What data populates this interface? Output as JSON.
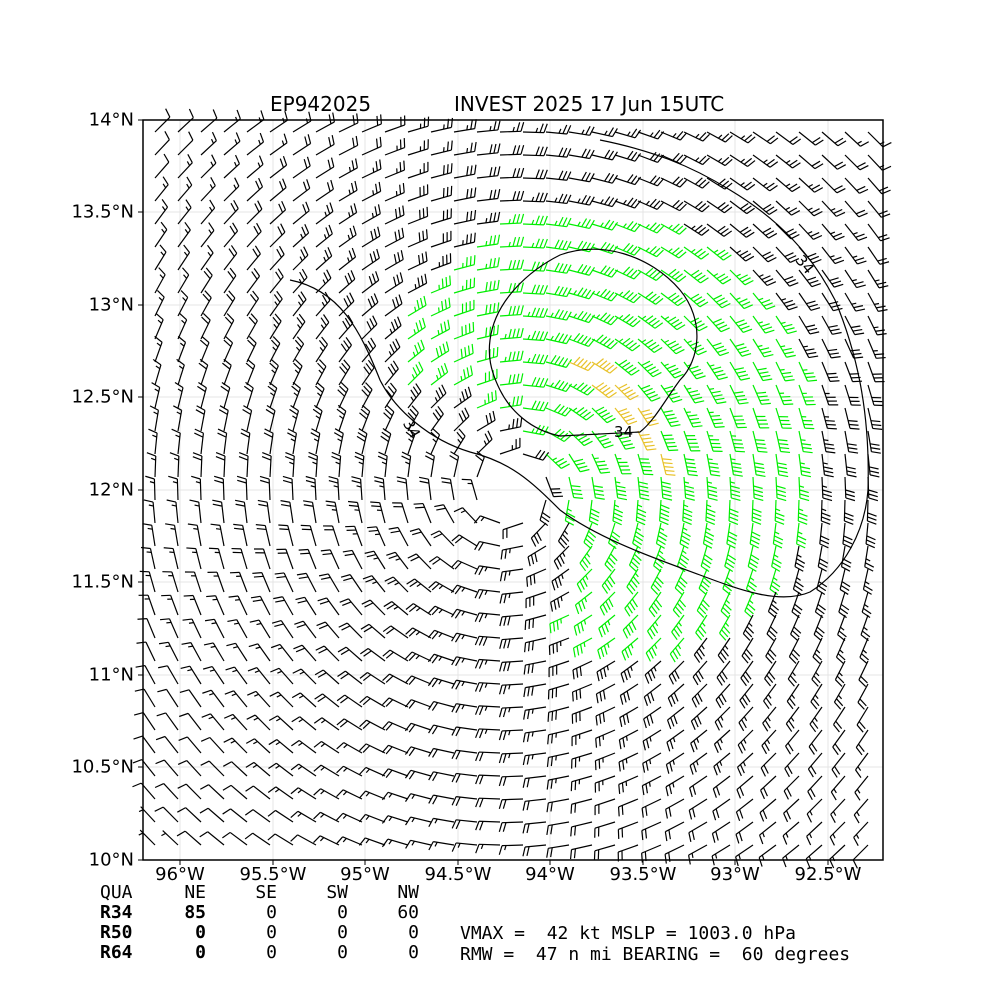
{
  "header": {
    "storm_id": "EP942025",
    "storm_title": "INVEST 2025 17 Jun 15UTC"
  },
  "map": {
    "lat_labels": [
      "14°N",
      "13.5°N",
      "13°N",
      "12.5°N",
      "12°N",
      "11.5°N",
      "11°N",
      "10.5°N",
      "10°N"
    ],
    "lon_labels": [
      "96°W",
      "95.5°W",
      "95°W",
      "94.5°W",
      "94°W",
      "93.5°W",
      "93°W",
      "92.5°W"
    ],
    "contour_labels": [
      "34",
      "34",
      "34"
    ],
    "barb_colors": {
      "below_34kt": "#000000",
      "34_to_50kt": "#00ee00",
      "50_to_64kt": "#e8c22a"
    },
    "center": {
      "lat": 12.0,
      "lon": 94.2
    }
  },
  "radii_table": {
    "headers": [
      "QUA",
      "NE",
      "SE",
      "SW",
      "NW"
    ],
    "rows": [
      {
        "label": "R34",
        "values": [
          "85",
          "0",
          "0",
          "60"
        ]
      },
      {
        "label": "R50",
        "values": [
          "0",
          "0",
          "0",
          "0"
        ]
      },
      {
        "label": "R64",
        "values": [
          "0",
          "0",
          "0",
          "0"
        ]
      }
    ]
  },
  "stats": {
    "line1": "VMAX =  42 kt MSLP = 1003.0 hPa",
    "line2": "RMW =  47 n mi BEARING =  60 degrees"
  }
}
